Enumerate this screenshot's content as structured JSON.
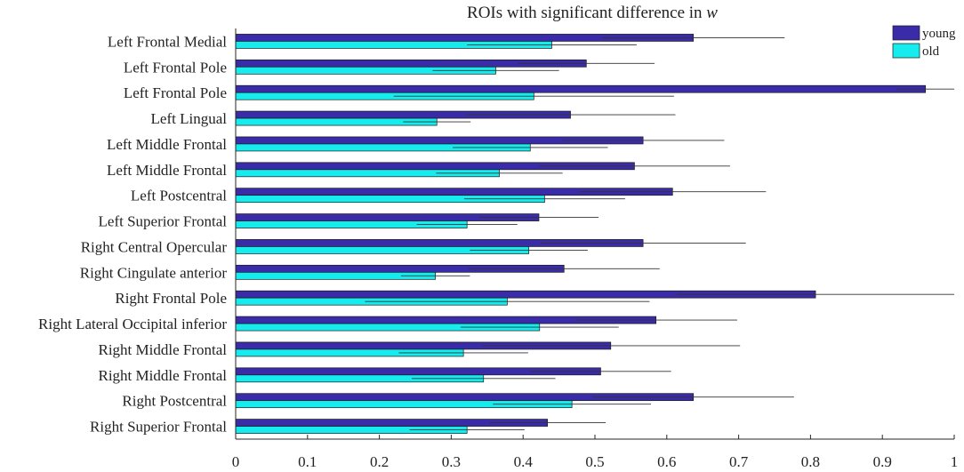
{
  "chart_data": {
    "type": "bar",
    "orientation": "horizontal",
    "title": "ROIs with significant difference in",
    "title_variable": "w",
    "xlabel": "",
    "ylabel": "",
    "xlim": [
      0,
      1
    ],
    "x_ticks": [
      0,
      0.1,
      0.2,
      0.3,
      0.4,
      0.5,
      0.6,
      0.7,
      0.8,
      0.9,
      1
    ],
    "x_tick_labels": [
      "0",
      "0.1",
      "0.2",
      "0.3",
      "0.4",
      "0.5",
      "0.6",
      "0.7",
      "0.8",
      "0.9",
      "1"
    ],
    "grid": false,
    "legend_position": "top-right",
    "categories": [
      "Left Frontal Medial",
      "Left Frontal Pole",
      "Left Frontal Pole",
      "Left Lingual",
      "Left Middle Frontal",
      "Left Middle Frontal",
      "Left Postcentral",
      "Left Superior Frontal",
      "Right Central Opercular",
      "Right Cingulate anterior",
      "Right Frontal Pole",
      "Right Lateral Occipital inferior",
      "Right Middle Frontal",
      "Right Middle Frontal",
      "Right Postcentral",
      "Right Superior Frontal"
    ],
    "series": [
      {
        "name": "young",
        "color": "#3a2ca8",
        "values": [
          0.637,
          0.488,
          0.96,
          0.466,
          0.567,
          0.555,
          0.608,
          0.422,
          0.567,
          0.457,
          0.807,
          0.585,
          0.522,
          0.508,
          0.637,
          0.434
        ],
        "errors": [
          0.127,
          0.095,
          0.04,
          0.146,
          0.113,
          0.133,
          0.13,
          0.083,
          0.143,
          0.133,
          0.193,
          0.113,
          0.18,
          0.098,
          0.14,
          0.081
        ]
      },
      {
        "name": "old",
        "color": "#16ecee",
        "values": [
          0.44,
          0.362,
          0.415,
          0.28,
          0.41,
          0.367,
          0.43,
          0.322,
          0.408,
          0.278,
          0.378,
          0.423,
          0.317,
          0.345,
          0.468,
          0.322
        ],
        "errors": [
          0.118,
          0.088,
          0.195,
          0.047,
          0.108,
          0.088,
          0.112,
          0.07,
          0.082,
          0.048,
          0.198,
          0.11,
          0.09,
          0.1,
          0.11,
          0.08
        ]
      }
    ]
  }
}
